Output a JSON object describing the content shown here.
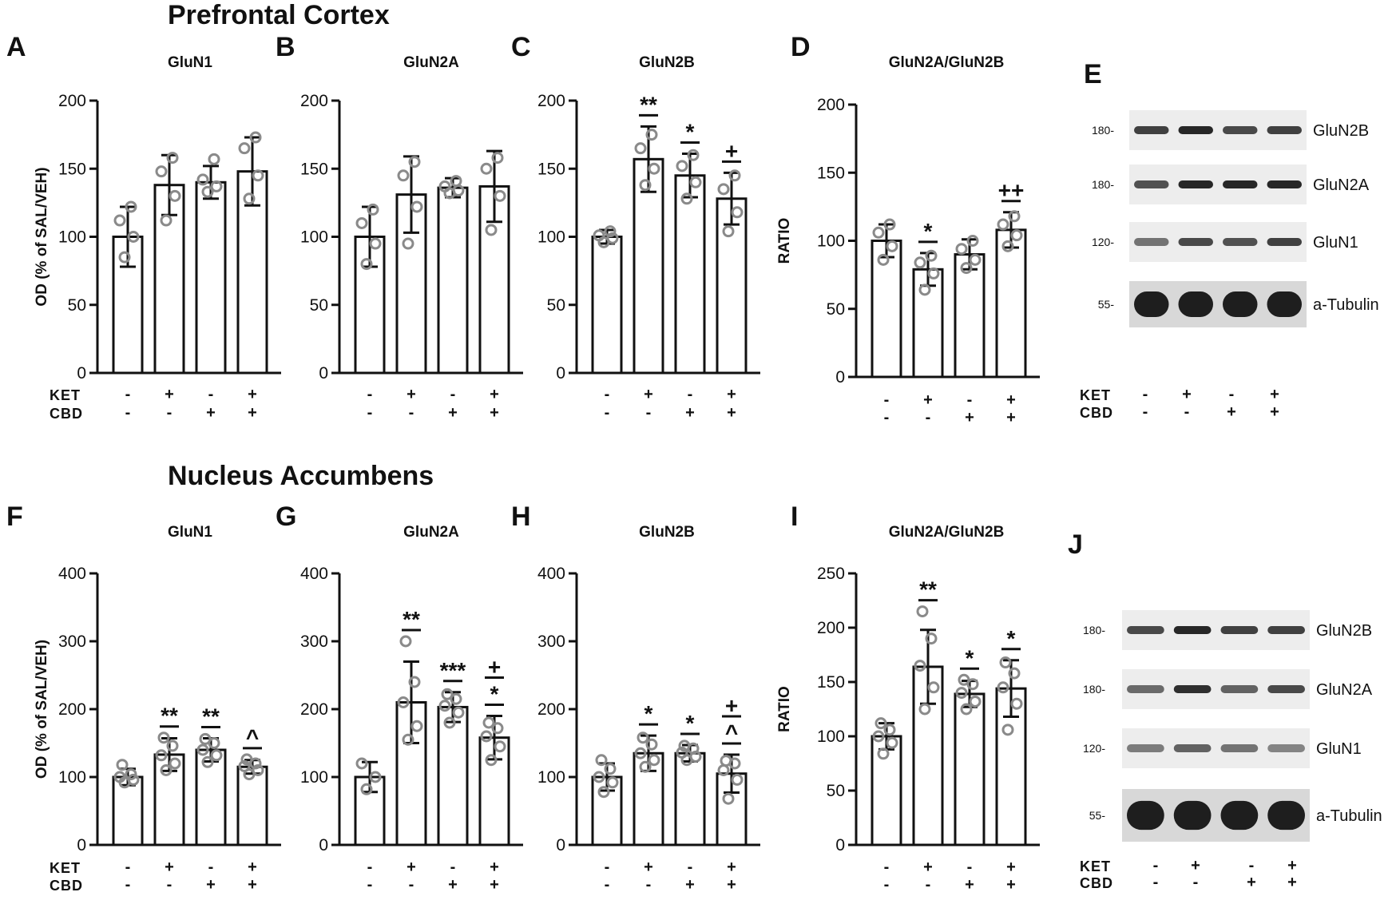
{
  "sections": [
    {
      "title": "Prefrontal Cortex"
    },
    {
      "title": "Nucleus Accumbens"
    }
  ],
  "treatments": {
    "rows": [
      "KET",
      "CBD"
    ],
    "KET": [
      "-",
      "+",
      "-",
      "+"
    ],
    "CBD": [
      "-",
      "-",
      "+",
      "+"
    ]
  },
  "chart_data": [
    {
      "panel": "A",
      "type": "bar",
      "title": "GluN1",
      "ylabel": "OD (% of SAL/VEH)",
      "ylim": [
        0,
        200
      ],
      "yticks": [
        0,
        50,
        100,
        150,
        200
      ],
      "categories": [
        "SAL/VEH",
        "KET/VEH",
        "SAL/CBD",
        "KET/CBD"
      ],
      "values": [
        100,
        138,
        140,
        148
      ],
      "sd": [
        22,
        22,
        12,
        25
      ],
      "sig": [
        "",
        "",
        "",
        ""
      ],
      "points": [
        [
          85,
          100,
          112,
          122
        ],
        [
          112,
          130,
          148,
          158
        ],
        [
          133,
          137,
          142,
          157
        ],
        [
          128,
          145,
          165,
          173
        ]
      ]
    },
    {
      "panel": "B",
      "type": "bar",
      "title": "GluN2A",
      "ylabel": "",
      "ylim": [
        0,
        200
      ],
      "yticks": [
        0,
        50,
        100,
        150,
        200
      ],
      "categories": [
        "SAL/VEH",
        "KET/VEH",
        "SAL/CBD",
        "KET/CBD"
      ],
      "values": [
        100,
        131,
        136,
        137
      ],
      "sd": [
        22,
        28,
        7,
        26
      ],
      "sig": [
        "",
        "",
        "",
        ""
      ],
      "points": [
        [
          80,
          95,
          110,
          120
        ],
        [
          95,
          122,
          145,
          155
        ],
        [
          132,
          134,
          137,
          141
        ],
        [
          105,
          130,
          150,
          158
        ]
      ]
    },
    {
      "panel": "C",
      "type": "bar",
      "title": "GluN2B",
      "ylabel": "",
      "ylim": [
        0,
        200
      ],
      "yticks": [
        0,
        50,
        100,
        150,
        200
      ],
      "categories": [
        "SAL/VEH",
        "KET/VEH",
        "SAL/CBD",
        "KET/CBD"
      ],
      "values": [
        100,
        157,
        145,
        128
      ],
      "sd": [
        5,
        24,
        16,
        19
      ],
      "sig": [
        "",
        "**",
        "*",
        "+"
      ],
      "points": [
        [
          96,
          99,
          101,
          104
        ],
        [
          138,
          150,
          165,
          175
        ],
        [
          128,
          140,
          152,
          160
        ],
        [
          104,
          118,
          135,
          145
        ]
      ]
    },
    {
      "panel": "D",
      "type": "bar",
      "title": "GluN2A/GluN2B",
      "ylabel": "RATIO",
      "ylim": [
        0,
        200
      ],
      "yticks": [
        0,
        50,
        100,
        150,
        200
      ],
      "categories": [
        "SAL/VEH",
        "KET/VEH",
        "SAL/CBD",
        "KET/CBD"
      ],
      "values": [
        100,
        79,
        90,
        108
      ],
      "sd": [
        12,
        12,
        11,
        13
      ],
      "sig": [
        "",
        "*",
        "",
        "++"
      ],
      "points": [
        [
          86,
          96,
          106,
          112
        ],
        [
          64,
          76,
          84,
          89
        ],
        [
          80,
          86,
          94,
          100
        ],
        [
          96,
          104,
          112,
          118
        ]
      ]
    },
    {
      "panel": "F",
      "type": "bar",
      "title": "GluN1",
      "ylabel": "OD (% of SAL/VEH)",
      "ylim": [
        0,
        400
      ],
      "yticks": [
        0,
        100,
        200,
        300,
        400
      ],
      "categories": [
        "SAL/VEH",
        "KET/VEH",
        "SAL/CBD",
        "KET/CBD"
      ],
      "values": [
        100,
        133,
        140,
        115
      ],
      "sd": [
        12,
        24,
        17,
        10
      ],
      "sig": [
        "",
        "**",
        "**",
        "^"
      ],
      "points": [
        [
          92,
          96,
          100,
          104,
          118
        ],
        [
          110,
          120,
          132,
          146,
          158
        ],
        [
          122,
          132,
          140,
          150,
          156
        ],
        [
          104,
          110,
          116,
          120,
          126
        ]
      ]
    },
    {
      "panel": "G",
      "type": "bar",
      "title": "GluN2A",
      "ylabel": "",
      "ylim": [
        0,
        400
      ],
      "yticks": [
        0,
        100,
        200,
        300,
        400
      ],
      "categories": [
        "SAL/VEH",
        "KET/VEH",
        "SAL/CBD",
        "KET/CBD"
      ],
      "values": [
        100,
        210,
        203,
        158
      ],
      "sd": [
        22,
        60,
        22,
        32
      ],
      "sig": [
        "",
        "**",
        "***",
        [
          "+",
          "*"
        ]
      ],
      "points": [
        [
          82,
          100,
          120
        ],
        [
          155,
          175,
          210,
          240,
          300
        ],
        [
          180,
          195,
          205,
          215,
          222
        ],
        [
          125,
          145,
          160,
          172,
          180
        ]
      ]
    },
    {
      "panel": "H",
      "type": "bar",
      "title": "GluN2B",
      "ylabel": "",
      "ylim": [
        0,
        400
      ],
      "yticks": [
        0,
        100,
        200,
        300,
        400
      ],
      "categories": [
        "SAL/VEH",
        "KET/VEH",
        "SAL/CBD",
        "KET/CBD"
      ],
      "values": [
        100,
        135,
        135,
        105
      ],
      "sd": [
        20,
        26,
        12,
        28
      ],
      "sig": [
        "",
        "*",
        "*",
        [
          "+",
          "^"
        ]
      ],
      "points": [
        [
          78,
          92,
          100,
          112,
          125
        ],
        [
          115,
          125,
          135,
          148,
          158
        ],
        [
          125,
          130,
          136,
          142,
          146
        ],
        [
          68,
          96,
          110,
          120,
          124
        ]
      ]
    },
    {
      "panel": "I",
      "type": "bar",
      "title": "GluN2A/GluN2B",
      "ylabel": "RATIO",
      "ylim": [
        0,
        250
      ],
      "yticks": [
        0,
        50,
        100,
        150,
        200,
        250
      ],
      "categories": [
        "SAL/VEH",
        "KET/VEH",
        "SAL/CBD",
        "KET/CBD"
      ],
      "values": [
        100,
        164,
        139,
        144
      ],
      "sd": [
        12,
        34,
        12,
        26
      ],
      "sig": [
        "",
        "**",
        "*",
        "*"
      ],
      "points": [
        [
          84,
          94,
          100,
          106,
          112
        ],
        [
          125,
          145,
          165,
          190,
          215
        ],
        [
          125,
          132,
          140,
          148,
          152
        ],
        [
          106,
          130,
          145,
          158,
          168
        ]
      ]
    }
  ],
  "blots": [
    {
      "panel": "E",
      "bands": [
        {
          "label": "GluN2B",
          "mw": "180-",
          "intensity": [
            0.8,
            0.95,
            0.75,
            0.8
          ]
        },
        {
          "label": "GluN2A",
          "mw": "180-",
          "intensity": [
            0.7,
            0.95,
            0.95,
            0.95
          ]
        },
        {
          "label": "GluN1",
          "mw": "120-",
          "intensity": [
            0.5,
            0.75,
            0.7,
            0.8
          ]
        },
        {
          "label": "a-Tubulin",
          "mw": "55-",
          "intensity": [
            1,
            1,
            1,
            1
          ]
        }
      ]
    },
    {
      "panel": "J",
      "bands": [
        {
          "label": "GluN2B",
          "mw": "180-",
          "intensity": [
            0.75,
            0.95,
            0.8,
            0.8
          ]
        },
        {
          "label": "GluN2A",
          "mw": "180-",
          "intensity": [
            0.55,
            0.9,
            0.6,
            0.75
          ]
        },
        {
          "label": "GluN1",
          "mw": "120-",
          "intensity": [
            0.45,
            0.6,
            0.5,
            0.4
          ]
        },
        {
          "label": "a-Tubulin",
          "mw": "55-",
          "intensity": [
            1,
            1,
            1,
            1
          ]
        }
      ]
    }
  ]
}
